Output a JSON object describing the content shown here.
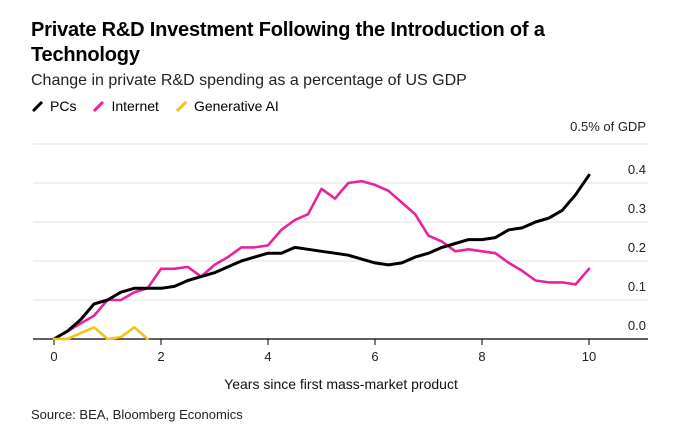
{
  "chart_data": {
    "type": "line",
    "title": "Private R&D Investment Following the Introduction of a Technology",
    "subtitle": "Change in private R&D spending as a percentage of US GDP",
    "xlabel": "Years since first mass-market product",
    "ylabel": "0.5% of GDP",
    "xlim": [
      -0.2,
      11.2
    ],
    "ylim": [
      -0.02,
      0.5
    ],
    "x_ticks": [
      0,
      2,
      4,
      6,
      8,
      10
    ],
    "x_tick_labels": [
      "0",
      "2",
      "4",
      "6",
      "8",
      "10"
    ],
    "y_ticks": [
      0.0,
      0.1,
      0.2,
      0.3,
      0.4
    ],
    "y_tick_labels": [
      "0.0",
      "0.1",
      "0.2",
      "0.3",
      "0.4"
    ],
    "y_top_label": "0.5% of GDP",
    "grid": true,
    "legend_position": "top-left",
    "series": [
      {
        "name": "PCs",
        "color": "#000000",
        "x": [
          0,
          0.25,
          0.5,
          0.75,
          1.0,
          1.25,
          1.5,
          1.75,
          2.0,
          2.25,
          2.5,
          2.75,
          3.0,
          3.25,
          3.5,
          3.75,
          4.0,
          4.25,
          4.5,
          4.75,
          5.0,
          5.25,
          5.5,
          5.75,
          6.0,
          6.25,
          6.5,
          6.75,
          7.0,
          7.25,
          7.5,
          7.75,
          8.0,
          8.25,
          8.5,
          8.75,
          9.0,
          9.25,
          9.5,
          9.75,
          10.0
        ],
        "values": [
          0.0,
          0.02,
          0.05,
          0.09,
          0.1,
          0.12,
          0.13,
          0.13,
          0.13,
          0.135,
          0.15,
          0.16,
          0.17,
          0.185,
          0.2,
          0.21,
          0.22,
          0.22,
          0.235,
          0.23,
          0.225,
          0.22,
          0.215,
          0.205,
          0.195,
          0.19,
          0.195,
          0.21,
          0.22,
          0.235,
          0.245,
          0.255,
          0.255,
          0.26,
          0.28,
          0.285,
          0.3,
          0.31,
          0.33,
          0.37,
          0.42
        ]
      },
      {
        "name": "Internet",
        "color": "#e8239c",
        "x": [
          0,
          0.25,
          0.5,
          0.75,
          1.0,
          1.25,
          1.5,
          1.75,
          2.0,
          2.25,
          2.5,
          2.75,
          3.0,
          3.25,
          3.5,
          3.75,
          4.0,
          4.25,
          4.5,
          4.75,
          5.0,
          5.25,
          5.5,
          5.75,
          6.0,
          6.25,
          6.5,
          6.75,
          7.0,
          7.25,
          7.5,
          7.75,
          8.0,
          8.25,
          8.5,
          8.75,
          9.0,
          9.25,
          9.5,
          9.75,
          10.0
        ],
        "values": [
          0.0,
          0.02,
          0.04,
          0.06,
          0.1,
          0.1,
          0.12,
          0.13,
          0.18,
          0.18,
          0.185,
          0.16,
          0.19,
          0.21,
          0.235,
          0.235,
          0.24,
          0.28,
          0.305,
          0.32,
          0.385,
          0.36,
          0.4,
          0.405,
          0.395,
          0.38,
          0.35,
          0.32,
          0.265,
          0.25,
          0.225,
          0.23,
          0.225,
          0.22,
          0.195,
          0.175,
          0.15,
          0.145,
          0.145,
          0.14,
          0.18
        ]
      },
      {
        "name": "Generative AI",
        "color": "#f2c31a",
        "x": [
          0,
          0.25,
          0.5,
          0.75,
          1.0,
          1.25,
          1.5,
          1.75
        ],
        "values": [
          0.0,
          0.0,
          0.015,
          0.03,
          0.0,
          0.005,
          0.03,
          0.0
        ]
      }
    ],
    "source": "Source: BEA, Bloomberg Economics"
  }
}
